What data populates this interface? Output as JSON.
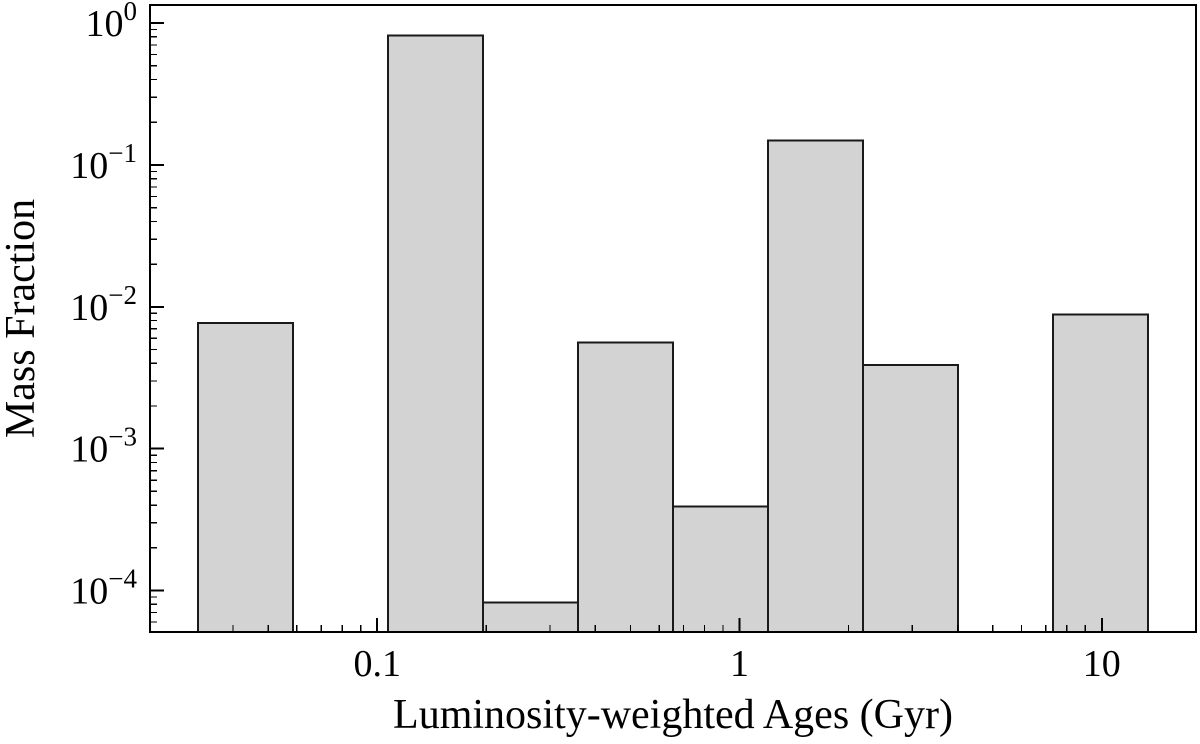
{
  "chart_data": {
    "type": "bar",
    "title": "",
    "xlabel": "Luminosity-weighted Ages (Gyr)",
    "ylabel": "Mass Fraction",
    "xscale": "log",
    "yscale": "log",
    "xlim": [
      0.0236,
      18.2
    ],
    "ylim": [
      5.1e-05,
      1.34
    ],
    "grid": false,
    "legend": false,
    "bar_fill_color": "#d3d3d3",
    "bar_edge_color": "#1a1a1a",
    "axis_color": "#000000",
    "bin_edges_gyr": [
      0.032,
      0.0585,
      0.107,
      0.196,
      0.358,
      0.655,
      1.198,
      2.191,
      4.008,
      7.33,
      13.41
    ],
    "mass_fractions": [
      0.0077,
      0,
      0.82,
      8.2e-05,
      0.0056,
      0.00039,
      0.149,
      0.0039,
      0,
      0.0088
    ],
    "xticks": [
      {
        "value": 0.1,
        "label": "0.1"
      },
      {
        "value": 1,
        "label": "1"
      },
      {
        "value": 10,
        "label": "10"
      }
    ],
    "xminor_ticks": [
      0.04,
      0.05,
      0.06,
      0.07,
      0.08,
      0.09,
      0.2,
      0.3,
      0.4,
      0.5,
      0.6,
      0.7,
      0.8,
      0.9,
      2,
      3,
      4,
      5,
      6,
      7,
      8,
      9
    ],
    "yticks": [
      {
        "value": 1,
        "base": "10",
        "exponent": "0"
      },
      {
        "value": 0.1,
        "base": "10",
        "exponent": "−1"
      },
      {
        "value": 0.01,
        "base": "10",
        "exponent": "−2"
      },
      {
        "value": 0.001,
        "base": "10",
        "exponent": "−3"
      },
      {
        "value": 0.0001,
        "base": "10",
        "exponent": "−4"
      }
    ],
    "yminor_ticks": [
      6e-05,
      7e-05,
      8e-05,
      9e-05,
      0.0002,
      0.0003,
      0.0004,
      0.0005,
      0.0006,
      0.0007,
      0.0008,
      0.0009,
      0.002,
      0.003,
      0.004,
      0.005,
      0.006,
      0.007,
      0.008,
      0.009,
      0.02,
      0.03,
      0.04,
      0.05,
      0.06,
      0.07,
      0.08,
      0.09,
      0.2,
      0.3,
      0.4,
      0.5,
      0.6,
      0.7,
      0.8,
      0.9
    ]
  }
}
